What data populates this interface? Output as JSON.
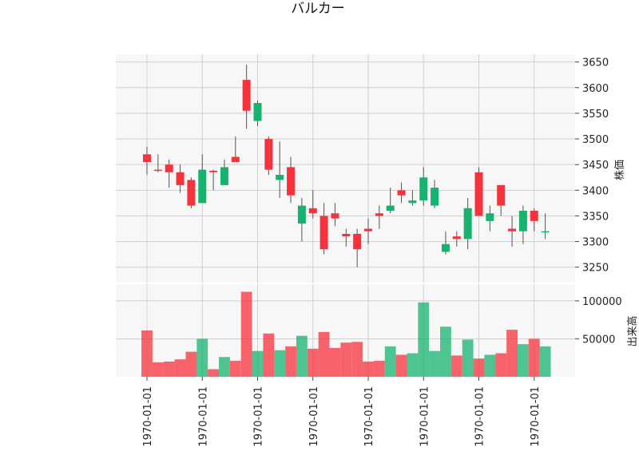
{
  "chart_data": {
    "type": "candlestick",
    "title": "バルカー",
    "up_color": "#16b36e",
    "down_color": "#f8323c",
    "price_panel": {
      "ylabel": "株価",
      "ylim": [
        3220,
        3665
      ],
      "yticks": [
        3250,
        3300,
        3350,
        3400,
        3450,
        3500,
        3550,
        3600,
        3650
      ]
    },
    "volume_panel": {
      "ylabel": "出来高",
      "ylim": [
        0,
        122000
      ],
      "yticks": [
        50000,
        100000
      ]
    },
    "x_tick_labels": [
      "1970-01-01",
      "1970-01-01",
      "1970-01-01",
      "1970-01-01",
      "1970-01-01",
      "1970-01-01",
      "1970-01-01",
      "1970-01-01"
    ],
    "x_tick_positions": [
      0,
      5,
      10,
      15,
      20,
      25,
      30,
      35
    ],
    "candles": [
      {
        "open": 3470,
        "high": 3485,
        "low": 3430,
        "close": 3455,
        "volume": 61000
      },
      {
        "open": 3440,
        "high": 3470,
        "low": 3435,
        "close": 3438,
        "volume": 19000
      },
      {
        "open": 3450,
        "high": 3460,
        "low": 3405,
        "close": 3435,
        "volume": 20000
      },
      {
        "open": 3435,
        "high": 3450,
        "low": 3395,
        "close": 3410,
        "volume": 23000
      },
      {
        "open": 3420,
        "high": 3425,
        "low": 3365,
        "close": 3370,
        "volume": 33000
      },
      {
        "open": 3375,
        "high": 3470,
        "low": 3375,
        "close": 3440,
        "volume": 50000
      },
      {
        "open": 3438,
        "high": 3440,
        "low": 3400,
        "close": 3435,
        "volume": 10000
      },
      {
        "open": 3410,
        "high": 3460,
        "low": 3410,
        "close": 3445,
        "volume": 26000
      },
      {
        "open": 3465,
        "high": 3505,
        "low": 3455,
        "close": 3455,
        "volume": 21000
      },
      {
        "open": 3615,
        "high": 3645,
        "low": 3520,
        "close": 3555,
        "volume": 112000
      },
      {
        "open": 3535,
        "high": 3575,
        "low": 3525,
        "close": 3570,
        "volume": 34000
      },
      {
        "open": 3500,
        "high": 3505,
        "low": 3430,
        "close": 3440,
        "volume": 57000
      },
      {
        "open": 3420,
        "high": 3495,
        "low": 3385,
        "close": 3430,
        "volume": 35000
      },
      {
        "open": 3445,
        "high": 3465,
        "low": 3375,
        "close": 3390,
        "volume": 40000
      },
      {
        "open": 3335,
        "high": 3385,
        "low": 3300,
        "close": 3370,
        "volume": 54000
      },
      {
        "open": 3365,
        "high": 3400,
        "low": 3345,
        "close": 3355,
        "volume": 37000
      },
      {
        "open": 3350,
        "high": 3375,
        "low": 3275,
        "close": 3285,
        "volume": 59000
      },
      {
        "open": 3355,
        "high": 3375,
        "low": 3330,
        "close": 3345,
        "volume": 38000
      },
      {
        "open": 3315,
        "high": 3325,
        "low": 3290,
        "close": 3310,
        "volume": 45000
      },
      {
        "open": 3315,
        "high": 3325,
        "low": 3250,
        "close": 3285,
        "volume": 46000
      },
      {
        "open": 3325,
        "high": 3345,
        "low": 3295,
        "close": 3320,
        "volume": 20000
      },
      {
        "open": 3355,
        "high": 3370,
        "low": 3325,
        "close": 3350,
        "volume": 21000
      },
      {
        "open": 3360,
        "high": 3405,
        "low": 3355,
        "close": 3370,
        "volume": 40000
      },
      {
        "open": 3400,
        "high": 3415,
        "low": 3375,
        "close": 3390,
        "volume": 29000
      },
      {
        "open": 3375,
        "high": 3400,
        "low": 3370,
        "close": 3380,
        "volume": 31000
      },
      {
        "open": 3380,
        "high": 3445,
        "low": 3370,
        "close": 3425,
        "volume": 98000
      },
      {
        "open": 3370,
        "high": 3420,
        "low": 3365,
        "close": 3405,
        "volume": 34000
      },
      {
        "open": 3280,
        "high": 3320,
        "low": 3275,
        "close": 3295,
        "volume": 66000
      },
      {
        "open": 3310,
        "high": 3320,
        "low": 3290,
        "close": 3305,
        "volume": 28000
      },
      {
        "open": 3305,
        "high": 3385,
        "low": 3285,
        "close": 3365,
        "volume": 49000
      },
      {
        "open": 3435,
        "high": 3445,
        "low": 3350,
        "close": 3350,
        "volume": 24000
      },
      {
        "open": 3340,
        "high": 3370,
        "low": 3320,
        "close": 3355,
        "volume": 29000
      },
      {
        "open": 3410,
        "high": 3410,
        "low": 3350,
        "close": 3370,
        "volume": 31000
      },
      {
        "open": 3325,
        "high": 3350,
        "low": 3290,
        "close": 3320,
        "volume": 62000
      },
      {
        "open": 3320,
        "high": 3370,
        "low": 3295,
        "close": 3360,
        "volume": 43000
      },
      {
        "open": 3360,
        "high": 3365,
        "low": 3320,
        "close": 3340,
        "volume": 50000
      },
      {
        "open": 3320,
        "high": 3355,
        "low": 3305,
        "close": 3320,
        "volume": 40000
      }
    ]
  }
}
